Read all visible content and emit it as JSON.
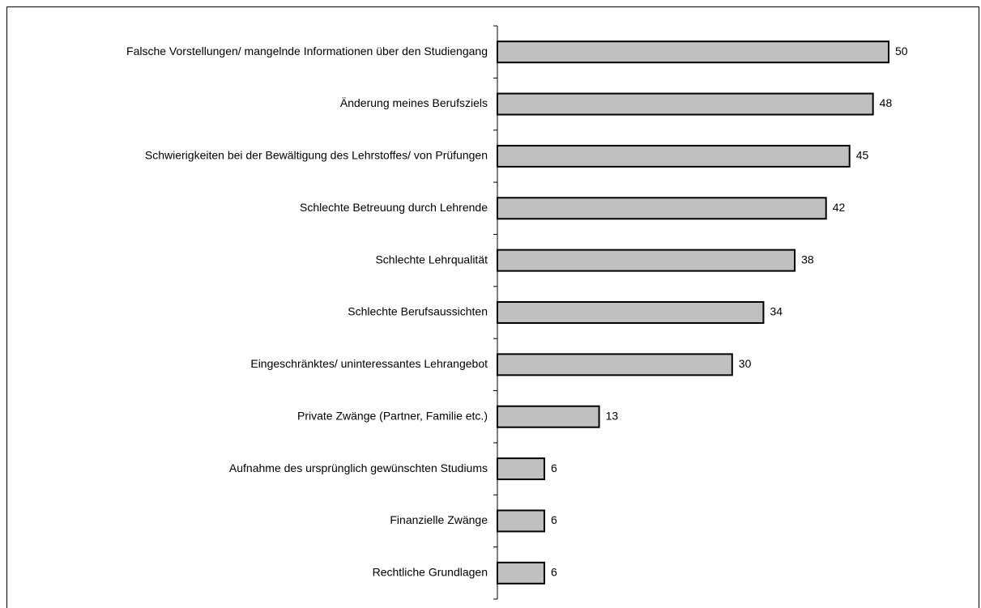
{
  "chart_data": {
    "type": "barh",
    "categories": [
      "Falsche Vorstellungen/ mangelnde Informationen über den Studiengang",
      "Änderung meines Berufsziels",
      "Schwierigkeiten bei der Bewältigung des Lehrstoffes/ von Prüfungen",
      "Schlechte Betreuung durch Lehrende",
      "Schlechte Lehrqualität",
      "Schlechte Berufsaussichten",
      "Eingeschränktes/ uninteressantes Lehrangebot",
      "Private Zwänge (Partner, Familie etc.)",
      "Aufnahme des ursprünglich gewünschten Studiums",
      "Finanzielle Zwänge",
      "Rechtliche Grundlagen"
    ],
    "values": [
      50,
      48,
      45,
      42,
      38,
      34,
      30,
      13,
      6,
      6,
      6
    ],
    "color": "#c0c0c0",
    "xlim": [
      0,
      50
    ]
  }
}
